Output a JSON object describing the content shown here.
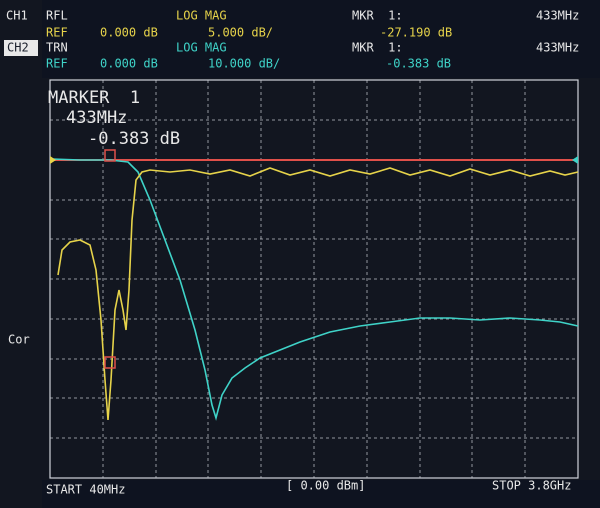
{
  "header": {
    "ch1": {
      "label": "CH1",
      "format": "RFL",
      "mode": "LOG MAG",
      "ref_label": "REF",
      "ref": "0.000 dB",
      "scale": "5.000 dB/",
      "marker": "MKR  1:",
      "marker_freq": "433MHz",
      "marker_value": "-27.190 dB"
    },
    "ch2": {
      "label": "CH2",
      "format": "TRN",
      "mode": "LOG MAG",
      "ref_label": "REF",
      "ref": "0.000 dB",
      "scale": "10.000 dB/",
      "marker": "MKR  1:",
      "marker_freq": "433MHz",
      "marker_value": "-0.383 dB"
    }
  },
  "marker_box": {
    "title": "MARKER  1",
    "freq": "433MHz",
    "value": "-0.383 dB"
  },
  "side": {
    "correction": "Cor"
  },
  "footer": {
    "start": "START 40MHz",
    "power": "[ 0.00 dBm]",
    "stop": "STOP 3.8GHz"
  }
}
